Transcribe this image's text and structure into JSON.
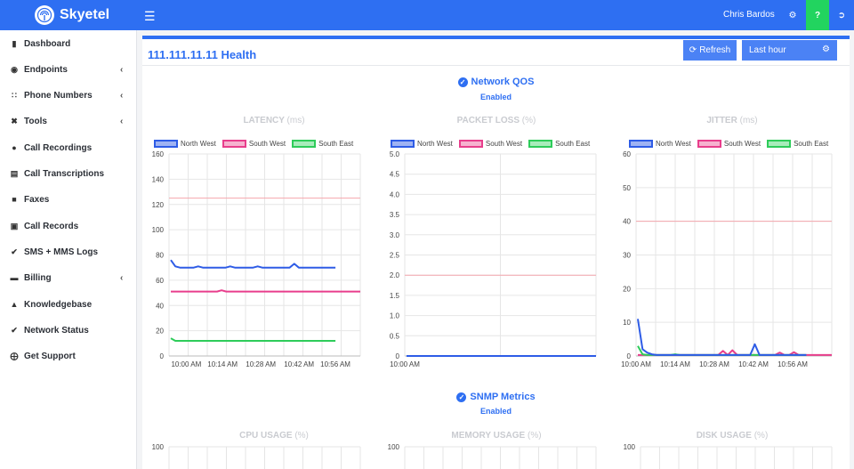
{
  "app": {
    "name": "Skyetel",
    "user_name": "Chris Bardos",
    "help_label": "?"
  },
  "sidebar": {
    "items": [
      {
        "label": "Dashboard",
        "icon": "bar-chart-icon",
        "chevron": false
      },
      {
        "label": "Endpoints",
        "icon": "circle-dot-icon",
        "chevron": true
      },
      {
        "label": "Phone Numbers",
        "icon": "dialpad-icon",
        "chevron": true
      },
      {
        "label": "Tools",
        "icon": "tools-icon",
        "chevron": true
      },
      {
        "label": "Call Recordings",
        "icon": "microphone-icon",
        "chevron": false
      },
      {
        "label": "Call Transcriptions",
        "icon": "document-icon",
        "chevron": false
      },
      {
        "label": "Faxes",
        "icon": "fax-icon",
        "chevron": false
      },
      {
        "label": "Call Records",
        "icon": "briefcase-icon",
        "chevron": false
      },
      {
        "label": "SMS + MMS Logs",
        "icon": "check-icon",
        "chevron": false
      },
      {
        "label": "Billing",
        "icon": "credit-card-icon",
        "chevron": true
      },
      {
        "label": "Knowledgebase",
        "icon": "graduation-cap-icon",
        "chevron": false
      },
      {
        "label": "Network Status",
        "icon": "check-circle-icon",
        "chevron": false
      },
      {
        "label": "Get Support",
        "icon": "life-ring-icon",
        "chevron": false
      }
    ]
  },
  "page": {
    "title": "111.111.11.11 Health",
    "refresh_label": "Refresh",
    "range_label": "Last hour"
  },
  "sections": {
    "qos": {
      "title": "Network QOS",
      "status": "Enabled"
    },
    "snmp": {
      "title": "SNMP Metrics",
      "status": "Enabled"
    }
  },
  "colors": {
    "north_west": "#2e5ce6",
    "south_west": "#e83e8c",
    "south_east": "#2ecc5a",
    "threshold": "#f4a6ad",
    "accent": "#2e6ff2"
  },
  "chart_data": [
    {
      "type": "line",
      "title": "LATENCY",
      "unit": "(ms)",
      "ylim": [
        0,
        160
      ],
      "yticks": [
        "0",
        "20",
        "40",
        "60",
        "80",
        "100",
        "120",
        "140",
        "160"
      ],
      "xticks": [
        "10:00 AM",
        "10:14 AM",
        "10:28 AM",
        "10:42 AM",
        "10:56 AM"
      ],
      "threshold": 125,
      "series": [
        {
          "name": "North West",
          "values": [
            76,
            71,
            70,
            70,
            70,
            70,
            71,
            70,
            70,
            70,
            70,
            70,
            70,
            71,
            70,
            70,
            70,
            70,
            70,
            71,
            70,
            70,
            70,
            70,
            70,
            70,
            70,
            73,
            70,
            70,
            70,
            70,
            70,
            70,
            70,
            70,
            70
          ]
        },
        {
          "name": "South West",
          "values": [
            51,
            51,
            51,
            51,
            51,
            51,
            51,
            51,
            51,
            51,
            51,
            52,
            51,
            51,
            51,
            51,
            51,
            51,
            51,
            51,
            51,
            51,
            51,
            51,
            51,
            51,
            51,
            51,
            51,
            51,
            51,
            51,
            51,
            51,
            51,
            51,
            51,
            51,
            51,
            51,
            51,
            51
          ]
        },
        {
          "name": "South East",
          "values": [
            14,
            12,
            12,
            12,
            12,
            12,
            12,
            12,
            12,
            12,
            12,
            12,
            12,
            12,
            12,
            12,
            12,
            12,
            12,
            12,
            12,
            12,
            12,
            12,
            12,
            12,
            12,
            12,
            12,
            12,
            12,
            12,
            12,
            12,
            12,
            12,
            12
          ]
        }
      ]
    },
    {
      "type": "line",
      "title": "PACKET LOSS",
      "unit": "(%)",
      "ylim": [
        0,
        5
      ],
      "yticks": [
        "0",
        "0.5",
        "1.0",
        "1.5",
        "2.0",
        "2.5",
        "3.0",
        "3.5",
        "4.0",
        "4.5",
        "5.0"
      ],
      "xticks": [
        "10:00 AM"
      ],
      "threshold": 2,
      "series": [
        {
          "name": "North West",
          "values": [
            0,
            0,
            0,
            0,
            0,
            0,
            0,
            0,
            0,
            0,
            0,
            0,
            0,
            0,
            0,
            0,
            0,
            0,
            0,
            0,
            0,
            0,
            0,
            0,
            0,
            0,
            0,
            0,
            0,
            0,
            0,
            0,
            0,
            0,
            0,
            0,
            0
          ]
        },
        {
          "name": "South West",
          "values": [
            0,
            0,
            0,
            0,
            0,
            0,
            0,
            0,
            0,
            0,
            0,
            0,
            0,
            0,
            0,
            0,
            0,
            0,
            0,
            0,
            0,
            0,
            0,
            0,
            0,
            0,
            0,
            0,
            0,
            0,
            0,
            0,
            0,
            0,
            0,
            0,
            0,
            0,
            0,
            0,
            0,
            0
          ]
        },
        {
          "name": "South East",
          "values": [
            0,
            0,
            0,
            0,
            0,
            0,
            0,
            0,
            0,
            0,
            0,
            0,
            0,
            0,
            0,
            0,
            0,
            0,
            0,
            0,
            0,
            0,
            0,
            0,
            0,
            0,
            0,
            0,
            0,
            0,
            0,
            0,
            0,
            0,
            0,
            0,
            0
          ]
        }
      ]
    },
    {
      "type": "line",
      "title": "JITTER",
      "unit": "(ms)",
      "ylim": [
        0,
        60
      ],
      "yticks": [
        "0",
        "10",
        "20",
        "30",
        "40",
        "50",
        "60"
      ],
      "xticks": [
        "10:00 AM",
        "10:14 AM",
        "10:28 AM",
        "10:42 AM",
        "10:56 AM"
      ],
      "threshold": 40,
      "series": [
        {
          "name": "North West",
          "values": [
            11,
            2,
            1,
            0.5,
            0.3,
            0.3,
            0.3,
            0.3,
            0.3,
            0.3,
            0.3,
            0.3,
            0.3,
            0.3,
            0.3,
            0.3,
            0.3,
            0.3,
            0.3,
            0.3,
            0.3,
            0.3,
            0.3,
            0.3,
            0.3,
            3.5,
            0.3,
            0.3,
            0.3,
            0.3,
            0.3,
            0.3,
            0.3,
            0.3,
            0.3,
            0.3,
            0.3
          ]
        },
        {
          "name": "South West",
          "values": [
            0.3,
            0.3,
            0.3,
            0.3,
            0.3,
            0.3,
            0.3,
            0.3,
            0.3,
            0.3,
            0.3,
            0.3,
            0.3,
            0.3,
            0.3,
            0.3,
            0.3,
            0.3,
            1.5,
            0.3,
            1.7,
            0.3,
            0.3,
            0.3,
            0.3,
            0.3,
            0.3,
            0.3,
            0.3,
            0.3,
            1.0,
            0.3,
            0.3,
            1.1,
            0.3,
            0.3,
            0.3,
            0.3,
            0.3,
            0.3,
            0.3,
            0.3
          ]
        },
        {
          "name": "South East",
          "values": [
            3,
            0.5,
            0.3,
            0.3,
            0.3,
            0.3,
            0.3,
            0.3,
            0.5,
            0.3,
            0.3,
            0.3,
            0.3,
            0.3,
            0.3,
            0.3,
            0.3,
            0.3,
            0.3,
            0.3,
            0.3,
            0.3,
            0.3,
            0.3,
            0.3,
            0.3,
            0.3,
            0.3,
            0.3,
            0.3,
            0.3,
            0.3,
            0.3,
            0.3,
            0.3,
            0.3,
            0.3
          ]
        }
      ]
    },
    {
      "type": "line",
      "title": "CPU USAGE",
      "unit": "(%)",
      "ylim": [
        0,
        100
      ],
      "yticks": [
        "100"
      ],
      "xticks": [],
      "series": []
    },
    {
      "type": "line",
      "title": "MEMORY USAGE",
      "unit": "(%)",
      "ylim": [
        0,
        100
      ],
      "yticks": [
        "100"
      ],
      "xticks": [],
      "series": []
    },
    {
      "type": "line",
      "title": "DISK USAGE",
      "unit": "(%)",
      "ylim": [
        0,
        100
      ],
      "yticks": [
        "100"
      ],
      "xticks": [],
      "series": []
    }
  ]
}
